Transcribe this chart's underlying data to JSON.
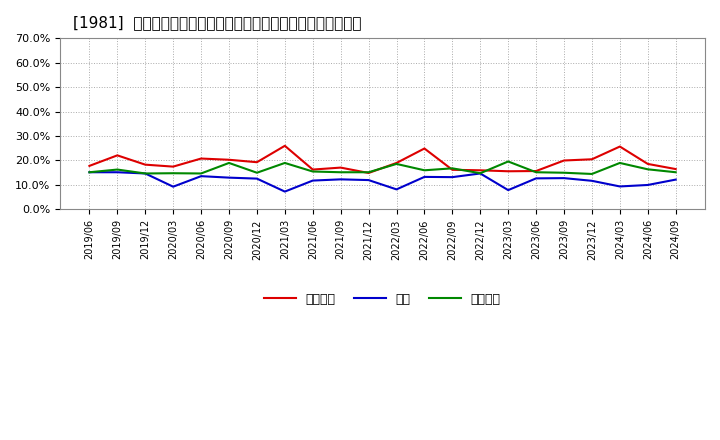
{
  "title": "[1981]  売上債権、在庫、買入債務の総資産に対する比率の推移",
  "x_labels": [
    "2019/06",
    "2019/09",
    "2019/12",
    "2020/03",
    "2020/06",
    "2020/09",
    "2020/12",
    "2021/03",
    "2021/06",
    "2021/09",
    "2021/12",
    "2022/03",
    "2022/06",
    "2022/09",
    "2022/12",
    "2023/03",
    "2023/06",
    "2023/09",
    "2023/12",
    "2024/03",
    "2024/06",
    "2024/09"
  ],
  "uriken": [
    0.178,
    0.221,
    0.183,
    0.175,
    0.208,
    0.203,
    0.193,
    0.26,
    0.163,
    0.171,
    0.149,
    0.19,
    0.249,
    0.162,
    0.16,
    0.156,
    0.157,
    0.2,
    0.205,
    0.257,
    0.186,
    0.165
  ],
  "zaiko": [
    0.152,
    0.152,
    0.147,
    0.093,
    0.136,
    0.13,
    0.126,
    0.073,
    0.118,
    0.123,
    0.12,
    0.082,
    0.133,
    0.132,
    0.147,
    0.079,
    0.127,
    0.128,
    0.117,
    0.094,
    0.1,
    0.122
  ],
  "kaiire": [
    0.152,
    0.163,
    0.147,
    0.148,
    0.147,
    0.19,
    0.15,
    0.19,
    0.155,
    0.152,
    0.152,
    0.186,
    0.16,
    0.168,
    0.148,
    0.196,
    0.152,
    0.15,
    0.145,
    0.19,
    0.164,
    0.152
  ],
  "uriken_color": "#dd0000",
  "zaiko_color": "#0000cc",
  "kaiire_color": "#008800",
  "ylim": [
    0.0,
    0.7
  ],
  "yticks": [
    0.0,
    0.1,
    0.2,
    0.3,
    0.4,
    0.5,
    0.6,
    0.7
  ],
  "legend_labels": [
    "売上債権",
    "在庫",
    "買入債務"
  ],
  "bg_color": "#ffffff",
  "plot_bg_color": "#ffffff",
  "grid_color": "#aaaaaa",
  "line_width": 1.5
}
